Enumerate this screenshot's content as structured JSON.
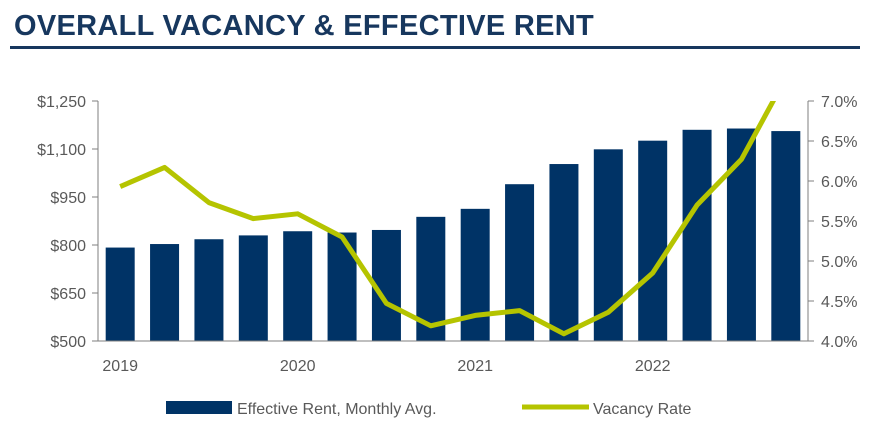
{
  "page": {
    "title": "OVERALL VACANCY & EFFECTIVE RENT"
  },
  "colors": {
    "title": "#17375e",
    "bars": "#003366",
    "line": "#b5c400",
    "axis": "#7f7f7f",
    "text": "#595959"
  },
  "chart_data": {
    "type": "bar",
    "title": "",
    "categories": [
      "2019 Q1",
      "2019 Q2",
      "2019 Q3",
      "2019 Q4",
      "2020 Q1",
      "2020 Q2",
      "2020 Q3",
      "2020 Q4",
      "2021 Q1",
      "2021 Q2",
      "2021 Q3",
      "2021 Q4",
      "2022 Q1",
      "2022 Q2",
      "2022 Q3",
      "2022 Q4"
    ],
    "x_tick_labels": [
      {
        "label": "2019",
        "category_index": 0
      },
      {
        "label": "2020",
        "category_index": 4
      },
      {
        "label": "2021",
        "category_index": 8
      },
      {
        "label": "2022",
        "category_index": 12
      }
    ],
    "series": [
      {
        "name": "Effective Rent, Monthly Avg.",
        "type": "bar",
        "axis": "left",
        "values": [
          792,
          803,
          818,
          830,
          843,
          839,
          847,
          888,
          913,
          990,
          1053,
          1099,
          1126,
          1160,
          1164,
          1156
        ]
      },
      {
        "name": "Vacancy Rate",
        "type": "line",
        "axis": "right",
        "values": [
          5.93,
          6.17,
          5.73,
          5.53,
          5.59,
          5.3,
          4.47,
          4.19,
          4.32,
          4.38,
          4.09,
          4.36,
          4.85,
          5.7,
          6.27,
          7.29
        ]
      }
    ],
    "y_left": {
      "min": 500,
      "max": 1250,
      "ticks": [
        500,
        650,
        800,
        950,
        1100,
        1250
      ],
      "tick_labels": [
        "$500",
        "$650",
        "$800",
        "$950",
        "$1,100",
        "$1,250"
      ]
    },
    "y_right": {
      "min": 4.0,
      "max": 7.0,
      "ticks": [
        4.0,
        4.5,
        5.0,
        5.5,
        6.0,
        6.5,
        7.0
      ],
      "tick_labels": [
        "4.0%",
        "4.5%",
        "5.0%",
        "5.5%",
        "6.0%",
        "6.5%",
        "7.0%"
      ]
    },
    "grid": false,
    "legend": {
      "placement": "bottom-center",
      "entries": [
        "Effective Rent, Monthly Avg.",
        "Vacancy Rate"
      ]
    }
  }
}
